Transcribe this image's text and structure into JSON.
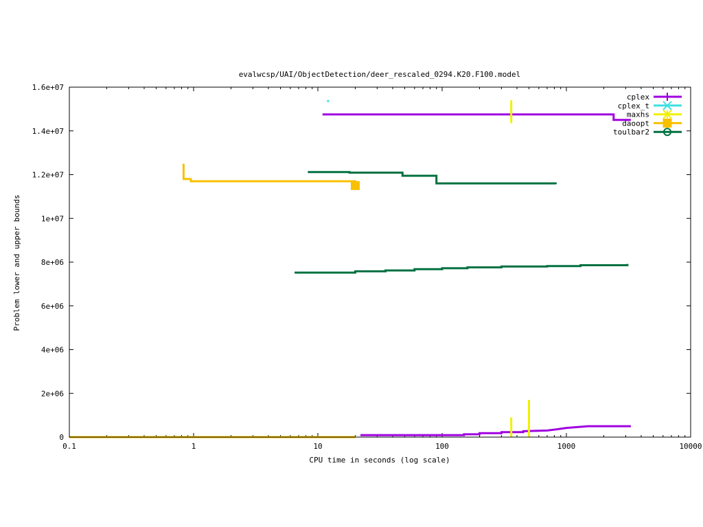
{
  "chart_data": {
    "type": "line",
    "title": "evalwcsp/UAI/ObjectDetection/deer_rescaled_0294.K20.F100.model",
    "xlabel": "CPU time in seconds (log scale)",
    "ylabel": "Problem lower and upper bounds",
    "xscale": "log",
    "xlim": [
      0.1,
      10000
    ],
    "ylim": [
      0,
      16000000
    ],
    "grid": false,
    "legend_position": "top-right",
    "x_ticks": [
      {
        "value": 0.1,
        "label": "0.1"
      },
      {
        "value": 1,
        "label": "1"
      },
      {
        "value": 10,
        "label": "10"
      },
      {
        "value": 100,
        "label": "100"
      },
      {
        "value": 1000,
        "label": "1000"
      },
      {
        "value": 10000,
        "label": "10000"
      }
    ],
    "y_ticks": [
      {
        "value": 0,
        "label": "0"
      },
      {
        "value": 2000000,
        "label": "2e+06"
      },
      {
        "value": 4000000,
        "label": "4e+06"
      },
      {
        "value": 6000000,
        "label": "6e+06"
      },
      {
        "value": 8000000,
        "label": "8e+06"
      },
      {
        "value": 10000000,
        "label": "1e+07"
      },
      {
        "value": 12000000,
        "label": "1.2e+07"
      },
      {
        "value": 14000000,
        "label": "1.4e+07"
      },
      {
        "value": 16000000,
        "label": "1.6e+07"
      }
    ],
    "series": [
      {
        "name": "cplex",
        "color": "#a000e0",
        "marker": "plus",
        "lines": [
          [
            [
              10.9,
              14750000
            ],
            [
              2400,
              14750000
            ],
            [
              2400,
              14500000
            ],
            [
              3300,
              14500000
            ]
          ],
          [
            [
              22,
              90000
            ],
            [
              150,
              90000
            ],
            [
              150,
              130000
            ],
            [
              200,
              130000
            ],
            [
              200,
              180000
            ],
            [
              300,
              180000
            ],
            [
              300,
              230000
            ],
            [
              450,
              230000
            ],
            [
              450,
              270000
            ],
            [
              700,
              300000
            ],
            [
              850,
              360000
            ],
            [
              1000,
              420000
            ],
            [
              1300,
              470000
            ],
            [
              1500,
              500000
            ],
            [
              3300,
              500000
            ]
          ]
        ],
        "points": []
      },
      {
        "name": "cplex_t",
        "color": "#40e0e0",
        "marker": "cross",
        "lines": [],
        "points": [
          [
            12,
            15380000
          ]
        ]
      },
      {
        "name": "maxhs",
        "color": "#f0f000",
        "marker": "star",
        "lines": [
          [
            [
              360,
              14350000
            ],
            [
              360,
              15400000
            ]
          ],
          [
            [
              360,
              0
            ],
            [
              360,
              900000
            ]
          ],
          [
            [
              500,
              0
            ],
            [
              500,
              1700000
            ]
          ]
        ],
        "points": []
      },
      {
        "name": "daoopt",
        "color": "#f8c000",
        "marker": "square",
        "lines": [
          [
            [
              0.1,
              0
            ],
            [
              20,
              0
            ]
          ],
          [
            [
              0.83,
              12500000
            ],
            [
              0.83,
              11800000
            ],
            [
              0.95,
              11800000
            ],
            [
              0.95,
              11700000
            ],
            [
              20,
              11700000
            ],
            [
              20,
              11520000
            ]
          ]
        ],
        "points": [
          [
            20,
            11500000
          ]
        ]
      },
      {
        "name": "toulbar2",
        "color": "#007040",
        "marker": "circle",
        "lines": [
          [
            [
              8.3,
              12120000
            ],
            [
              18,
              12120000
            ],
            [
              18,
              12090000
            ],
            [
              48,
              12090000
            ],
            [
              48,
              11950000
            ],
            [
              90,
              11950000
            ],
            [
              90,
              11600000
            ],
            [
              820,
              11600000
            ],
            [
              820,
              11560000
            ]
          ],
          [
            [
              6.5,
              7520000
            ],
            [
              20,
              7520000
            ],
            [
              20,
              7580000
            ],
            [
              35,
              7580000
            ],
            [
              35,
              7620000
            ],
            [
              60,
              7620000
            ],
            [
              60,
              7680000
            ],
            [
              100,
              7680000
            ],
            [
              100,
              7720000
            ],
            [
              160,
              7720000
            ],
            [
              160,
              7760000
            ],
            [
              300,
              7760000
            ],
            [
              300,
              7800000
            ],
            [
              700,
              7800000
            ],
            [
              700,
              7820000
            ],
            [
              1300,
              7820000
            ],
            [
              1300,
              7860000
            ],
            [
              3100,
              7860000
            ],
            [
              3100,
              7920000
            ]
          ]
        ],
        "points": []
      }
    ]
  }
}
